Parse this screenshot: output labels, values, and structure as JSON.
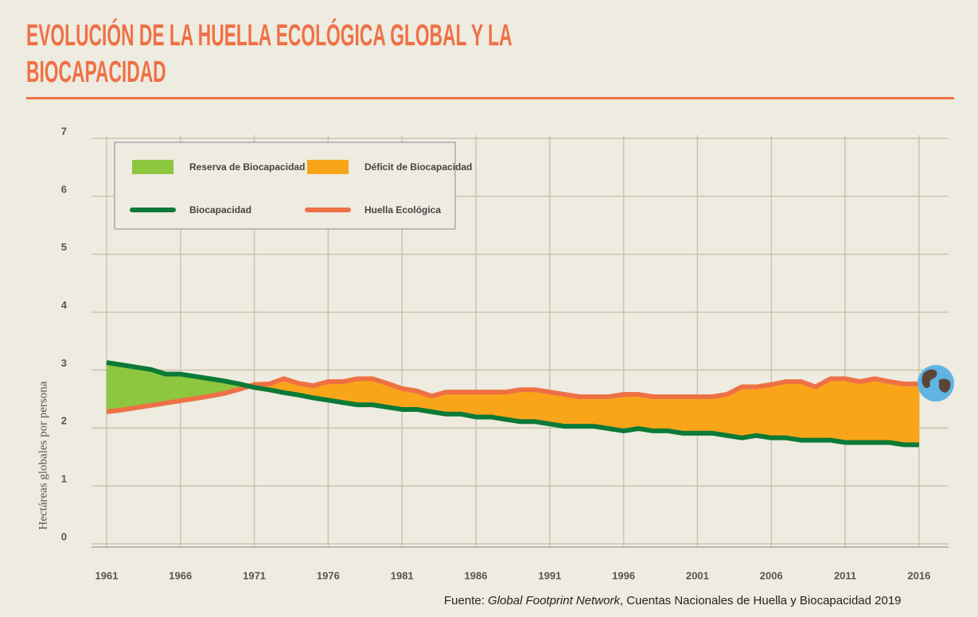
{
  "chart_data": {
    "type": "line",
    "title": "EVOLUCIÓN DE LA HUELLA ECOLÓGICA GLOBAL Y LA BIOCAPACIDAD",
    "ylabel": "Hectáreas globales por persona",
    "source": [
      "Fuente:",
      "Global Footprint Network",
      ", Cuentas Nacionales de Huella y Biocapacidad 2019"
    ],
    "x": [
      1961,
      1962,
      1963,
      1964,
      1965,
      1966,
      1967,
      1968,
      1969,
      1970,
      1971,
      1972,
      1973,
      1974,
      1975,
      1976,
      1977,
      1978,
      1979,
      1980,
      1981,
      1982,
      1983,
      1984,
      1985,
      1986,
      1987,
      1988,
      1989,
      1990,
      1991,
      1992,
      1993,
      1994,
      1995,
      1996,
      1997,
      1998,
      1999,
      2000,
      2001,
      2002,
      2003,
      2004,
      2005,
      2006,
      2007,
      2008,
      2009,
      2010,
      2011,
      2012,
      2013,
      2014,
      2015,
      2016
    ],
    "series": [
      {
        "name": "Biocapacidad",
        "color": "#0b7a37",
        "values": [
          3.13,
          3.09,
          3.05,
          3.01,
          2.93,
          2.93,
          2.89,
          2.85,
          2.81,
          2.76,
          2.7,
          2.66,
          2.61,
          2.57,
          2.52,
          2.48,
          2.44,
          2.4,
          2.4,
          2.36,
          2.32,
          2.32,
          2.28,
          2.24,
          2.24,
          2.19,
          2.19,
          2.15,
          2.11,
          2.11,
          2.07,
          2.03,
          2.03,
          2.03,
          1.99,
          1.95,
          1.99,
          1.95,
          1.95,
          1.91,
          1.91,
          1.91,
          1.87,
          1.83,
          1.87,
          1.83,
          1.83,
          1.79,
          1.79,
          1.79,
          1.75,
          1.75,
          1.75,
          1.75,
          1.71,
          1.71
        ]
      },
      {
        "name": "Huella Ecológica",
        "color": "#ee7145",
        "values": [
          2.28,
          2.31,
          2.35,
          2.39,
          2.43,
          2.47,
          2.51,
          2.55,
          2.6,
          2.67,
          2.75,
          2.76,
          2.85,
          2.77,
          2.73,
          2.8,
          2.8,
          2.85,
          2.85,
          2.77,
          2.68,
          2.64,
          2.55,
          2.62,
          2.62,
          2.62,
          2.62,
          2.62,
          2.66,
          2.66,
          2.62,
          2.58,
          2.54,
          2.54,
          2.54,
          2.58,
          2.58,
          2.54,
          2.54,
          2.54,
          2.54,
          2.54,
          2.58,
          2.71,
          2.71,
          2.75,
          2.8,
          2.8,
          2.71,
          2.85,
          2.85,
          2.8,
          2.85,
          2.8,
          2.76,
          2.76
        ]
      }
    ],
    "areas": [
      {
        "name": "Reserva de Biocapacidad",
        "color": "#8dc63f"
      },
      {
        "name": "Déficit de Biocapacidad",
        "color": "#f9a51a"
      }
    ],
    "xlim": [
      1960,
      2018
    ],
    "xticks": [
      1961,
      1966,
      1971,
      1976,
      1981,
      1986,
      1991,
      1996,
      2001,
      2006,
      2011,
      2016
    ],
    "ylim": [
      0,
      7
    ],
    "yticks": [
      0,
      1,
      2,
      3,
      4,
      5,
      6,
      7
    ],
    "grid": true
  }
}
